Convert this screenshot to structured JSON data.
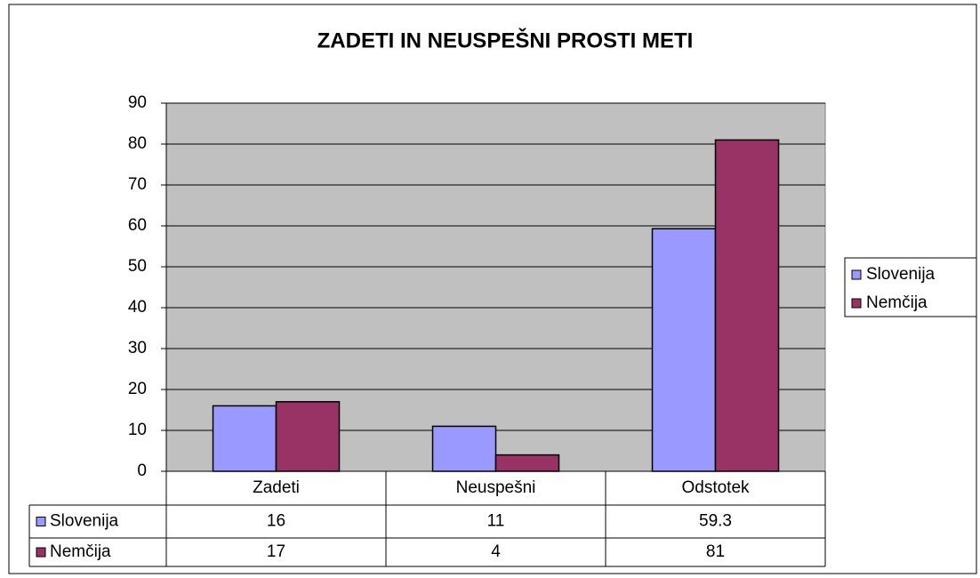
{
  "chart_data": {
    "type": "bar",
    "title": "ZADETI IN NEUSPEŠNI PROSTI METI",
    "categories": [
      "Zadeti",
      "Neuspešni",
      "Odstotek"
    ],
    "series": [
      {
        "name": "Slovenija",
        "color": "#9999ff",
        "values": [
          16,
          11,
          59.3
        ]
      },
      {
        "name": "Nemčija",
        "color": "#993366",
        "values": [
          17,
          4,
          81
        ]
      }
    ],
    "ylim": [
      0,
      90
    ],
    "yticks": [
      0,
      10,
      20,
      30,
      40,
      50,
      60,
      70,
      80,
      90
    ],
    "grid": true,
    "legend": "right",
    "data_table": true
  }
}
